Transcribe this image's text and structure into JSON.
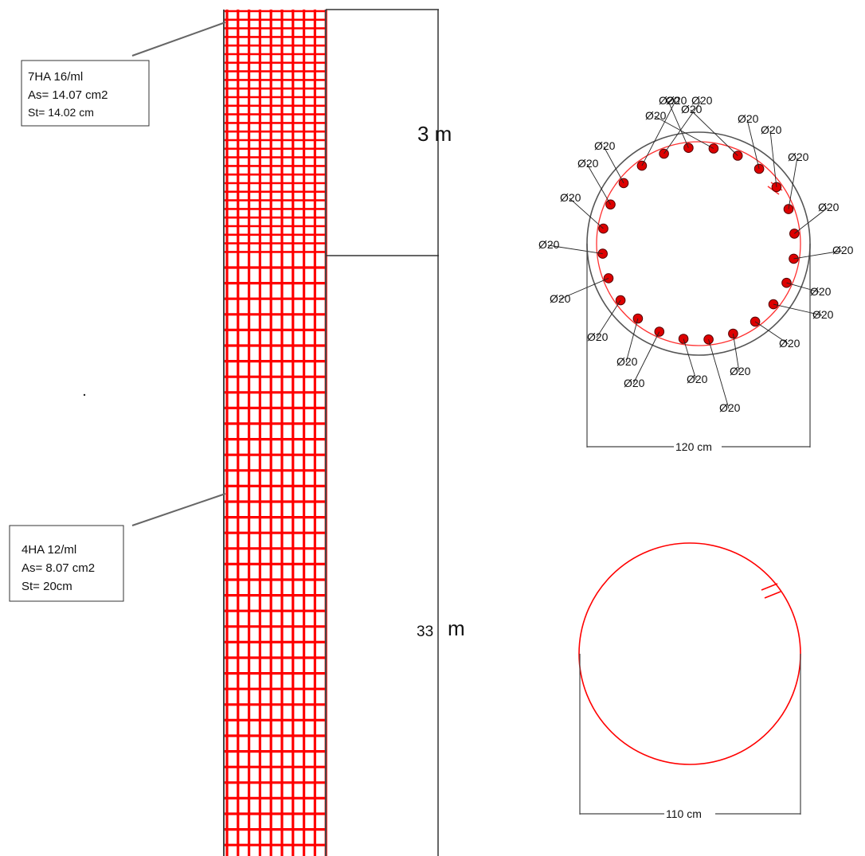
{
  "column": {
    "dim_top": "3 m",
    "dim_bottom_num": "33",
    "dim_bottom_unit": "m"
  },
  "callout_top": {
    "line1": "7HA 16/ml",
    "line2": "As= 14.07 cm2",
    "line3": "St= 14.02 cm"
  },
  "callout_bottom": {
    "line1": "4HA 12/ml",
    "line2": "As= 8.07 cm2",
    "line3": "St= 20cm"
  },
  "section_top": {
    "width_label": "120 cm",
    "bar_label": "Ø20",
    "bar_count": 24
  },
  "section_bottom": {
    "width_label": "110 cm"
  },
  "colors": {
    "rebar": "#ff0000",
    "bar_fill": "#dd0000",
    "outline": "#333333"
  }
}
